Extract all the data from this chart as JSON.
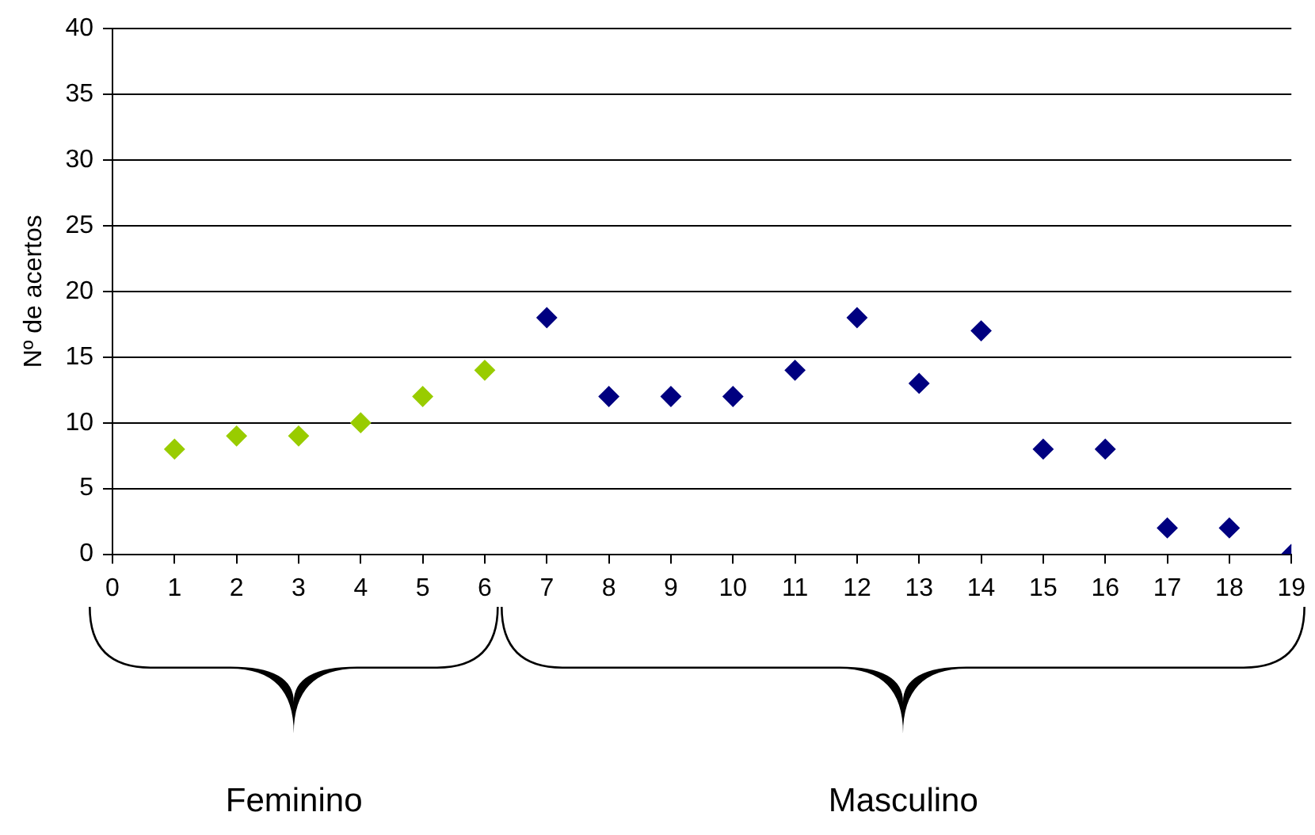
{
  "chart_data": {
    "type": "scatter",
    "ylabel": "Nº de acertos",
    "xlim": [
      0,
      19
    ],
    "xticks": [
      0,
      1,
      2,
      3,
      4,
      5,
      6,
      7,
      8,
      9,
      10,
      11,
      12,
      13,
      14,
      15,
      16,
      17,
      18,
      19
    ],
    "ylim": [
      0,
      40
    ],
    "yticks": [
      0,
      5,
      10,
      15,
      20,
      25,
      30,
      35,
      40
    ],
    "grid": "y",
    "legend": false,
    "marker": "diamond",
    "annotations": [
      "Feminino",
      "Masculino"
    ],
    "series": [
      {
        "color": "#99cc00",
        "x": [
          1,
          2,
          3,
          4,
          5,
          6
        ],
        "values": [
          8,
          9,
          9,
          10,
          12,
          14
        ]
      },
      {
        "color": "#000080",
        "x": [
          7,
          8,
          9,
          10,
          11,
          12,
          13,
          14,
          15,
          16,
          17,
          18,
          19
        ],
        "values": [
          18,
          12,
          12,
          12,
          14,
          18,
          13,
          17,
          8,
          8,
          2,
          2,
          0
        ]
      }
    ]
  }
}
